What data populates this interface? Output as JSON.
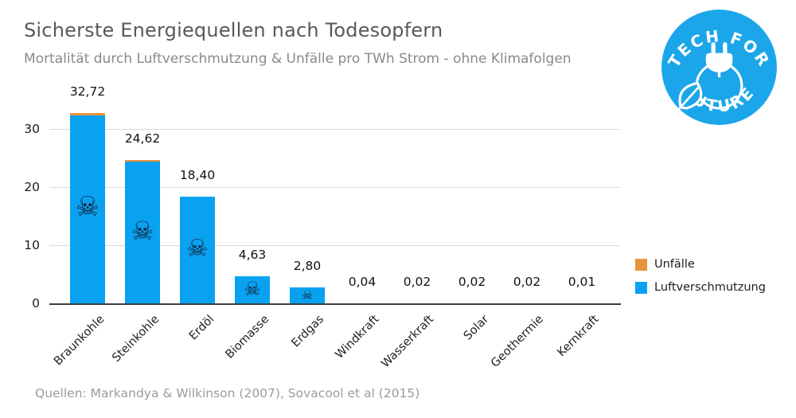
{
  "header": {
    "title": "Sicherste Energiequellen nach Todesopfern",
    "subtitle": "Mortalität durch Luftverschmutzung & Unfälle pro TWh Strom - ohne Klimafolgen"
  },
  "logo": {
    "arc_top": "TECH FOR",
    "arc_bottom": "FUTURE",
    "color": "#1ba6ea"
  },
  "legend": {
    "items": [
      {
        "label": "Unfälle",
        "color": "#e8943a"
      },
      {
        "label": "Luftverschmutzung",
        "color": "#09a2f1"
      }
    ]
  },
  "footer": {
    "source": "Quellen: Markandya & Wilkinson (2007), Sovacool et al (2015)"
  },
  "chart_data": {
    "type": "bar",
    "stacked": true,
    "title": "Sicherste Energiequellen nach Todesopfern",
    "subtitle": "Mortalität durch Luftverschmutzung & Unfälle pro TWh Strom - ohne Klimafolgen",
    "categories": [
      "Braunkohle",
      "Steinkohle",
      "Erdöl",
      "Biomasse",
      "Erdgas",
      "Windkraft",
      "Wasserkraft",
      "Solar",
      "Geothermie",
      "Kernkraft"
    ],
    "values": [
      32.72,
      24.62,
      18.4,
      4.63,
      2.8,
      0.04,
      0.02,
      0.02,
      0.02,
      0.01
    ],
    "value_labels": [
      "32,72",
      "24,62",
      "18,40",
      "4,63",
      "2,80",
      "0,04",
      "0,02",
      "0,02",
      "0,02",
      "0,01"
    ],
    "series": [
      {
        "name": "Unfälle",
        "color": "#e8943a",
        "rendering": "thin cap visible atop Braunkohle and Steinkohle bars"
      },
      {
        "name": "Luftverschmutzung",
        "color": "#09a2f1",
        "rendering": "main body of every bar"
      }
    ],
    "unfaelle_cap_visible_on": [
      "Braunkohle",
      "Steinkohle"
    ],
    "skull_icon": "☠",
    "skull_on_bars": [
      "Braunkohle",
      "Steinkohle",
      "Erdöl",
      "Biomasse",
      "Erdgas"
    ],
    "xlabel": "",
    "ylabel": "",
    "yticks": [
      0,
      10,
      20,
      30
    ],
    "ylim": [
      0,
      33.5
    ],
    "grid": "horizontal",
    "legend_position": "right"
  }
}
